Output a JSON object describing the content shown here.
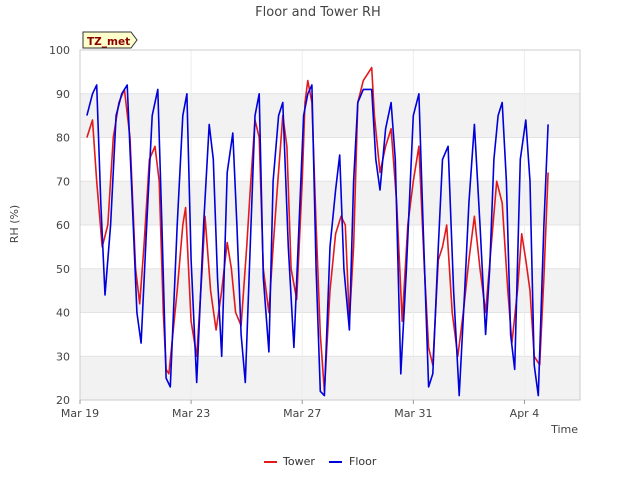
{
  "chart_data": {
    "type": "line",
    "title": "Floor and Tower RH",
    "xlabel": "Time",
    "ylabel": "RH (%)",
    "badge": "TZ_met",
    "ylim": [
      20,
      100
    ],
    "y_ticks": [
      20,
      30,
      40,
      50,
      60,
      70,
      80,
      90,
      100
    ],
    "x_range_days": [
      0,
      18
    ],
    "x_ticks": [
      {
        "day": 0,
        "label": "Mar 19"
      },
      {
        "day": 4,
        "label": "Mar 23"
      },
      {
        "day": 8,
        "label": "Mar 27"
      },
      {
        "day": 12,
        "label": "Mar 31"
      },
      {
        "day": 16,
        "label": "Apr 4"
      }
    ],
    "legend": [
      "Tower",
      "Floor"
    ],
    "legend_position": "bottom-center",
    "colors": {
      "Tower": "#e31a1c",
      "Floor": "#0000dd",
      "badge_bg": "#ffffcc",
      "badge_text": "#8b0000",
      "band": "#f2f2f2"
    },
    "series": [
      {
        "name": "Tower",
        "points": [
          [
            0.25,
            80
          ],
          [
            0.45,
            84
          ],
          [
            0.6,
            70
          ],
          [
            0.8,
            55
          ],
          [
            1.0,
            60
          ],
          [
            1.2,
            80
          ],
          [
            1.4,
            88
          ],
          [
            1.6,
            91
          ],
          [
            1.8,
            80
          ],
          [
            2.0,
            50
          ],
          [
            2.15,
            42
          ],
          [
            2.3,
            55
          ],
          [
            2.5,
            75
          ],
          [
            2.7,
            78
          ],
          [
            2.85,
            70
          ],
          [
            3.0,
            40
          ],
          [
            3.1,
            27
          ],
          [
            3.2,
            26
          ],
          [
            3.5,
            45
          ],
          [
            3.7,
            60
          ],
          [
            3.8,
            64
          ],
          [
            4.0,
            38
          ],
          [
            4.2,
            30
          ],
          [
            4.4,
            50
          ],
          [
            4.5,
            62
          ],
          [
            4.7,
            45
          ],
          [
            4.9,
            36
          ],
          [
            5.1,
            45
          ],
          [
            5.3,
            56
          ],
          [
            5.45,
            50
          ],
          [
            5.6,
            40
          ],
          [
            5.8,
            37
          ],
          [
            6.0,
            55
          ],
          [
            6.15,
            70
          ],
          [
            6.3,
            84
          ],
          [
            6.45,
            80
          ],
          [
            6.6,
            50
          ],
          [
            6.8,
            40
          ],
          [
            6.95,
            55
          ],
          [
            7.1,
            68
          ],
          [
            7.3,
            85
          ],
          [
            7.45,
            78
          ],
          [
            7.6,
            50
          ],
          [
            7.8,
            43
          ],
          [
            8.0,
            70
          ],
          [
            8.1,
            88
          ],
          [
            8.2,
            93
          ],
          [
            8.35,
            88
          ],
          [
            8.5,
            60
          ],
          [
            8.65,
            35
          ],
          [
            8.8,
            22
          ],
          [
            9.0,
            45
          ],
          [
            9.2,
            58
          ],
          [
            9.4,
            62
          ],
          [
            9.55,
            60
          ],
          [
            9.7,
            38
          ],
          [
            9.85,
            55
          ],
          [
            10.0,
            88
          ],
          [
            10.2,
            93
          ],
          [
            10.4,
            95
          ],
          [
            10.5,
            96
          ],
          [
            10.6,
            85
          ],
          [
            10.8,
            72
          ],
          [
            11.0,
            78
          ],
          [
            11.2,
            82
          ],
          [
            11.4,
            65
          ],
          [
            11.6,
            38
          ],
          [
            11.8,
            60
          ],
          [
            12.0,
            70
          ],
          [
            12.2,
            78
          ],
          [
            12.4,
            50
          ],
          [
            12.55,
            32
          ],
          [
            12.7,
            28
          ],
          [
            12.9,
            52
          ],
          [
            13.05,
            55
          ],
          [
            13.2,
            60
          ],
          [
            13.4,
            40
          ],
          [
            13.6,
            30
          ],
          [
            13.8,
            40
          ],
          [
            14.0,
            52
          ],
          [
            14.2,
            62
          ],
          [
            14.4,
            50
          ],
          [
            14.6,
            40
          ],
          [
            14.8,
            55
          ],
          [
            15.0,
            70
          ],
          [
            15.2,
            65
          ],
          [
            15.4,
            45
          ],
          [
            15.55,
            33
          ],
          [
            15.75,
            45
          ],
          [
            15.9,
            58
          ],
          [
            16.05,
            52
          ],
          [
            16.2,
            45
          ],
          [
            16.35,
            30
          ],
          [
            16.55,
            28
          ],
          [
            16.7,
            48
          ],
          [
            16.85,
            72
          ]
        ]
      },
      {
        "name": "Floor",
        "points": [
          [
            0.25,
            85
          ],
          [
            0.45,
            90
          ],
          [
            0.6,
            92
          ],
          [
            0.75,
            65
          ],
          [
            0.9,
            44
          ],
          [
            1.1,
            60
          ],
          [
            1.3,
            85
          ],
          [
            1.5,
            90
          ],
          [
            1.7,
            92
          ],
          [
            1.85,
            70
          ],
          [
            2.05,
            40
          ],
          [
            2.2,
            33
          ],
          [
            2.4,
            60
          ],
          [
            2.6,
            85
          ],
          [
            2.8,
            91
          ],
          [
            2.95,
            60
          ],
          [
            3.1,
            25
          ],
          [
            3.25,
            23
          ],
          [
            3.5,
            60
          ],
          [
            3.7,
            85
          ],
          [
            3.85,
            90
          ],
          [
            4.0,
            52
          ],
          [
            4.2,
            24
          ],
          [
            4.45,
            60
          ],
          [
            4.65,
            83
          ],
          [
            4.8,
            75
          ],
          [
            4.95,
            48
          ],
          [
            5.1,
            30
          ],
          [
            5.3,
            72
          ],
          [
            5.5,
            81
          ],
          [
            5.65,
            60
          ],
          [
            5.8,
            35
          ],
          [
            5.95,
            24
          ],
          [
            6.1,
            50
          ],
          [
            6.3,
            85
          ],
          [
            6.45,
            90
          ],
          [
            6.6,
            48
          ],
          [
            6.8,
            31
          ],
          [
            6.95,
            70
          ],
          [
            7.15,
            85
          ],
          [
            7.3,
            88
          ],
          [
            7.5,
            55
          ],
          [
            7.7,
            32
          ],
          [
            7.85,
            55
          ],
          [
            8.05,
            85
          ],
          [
            8.2,
            90
          ],
          [
            8.35,
            92
          ],
          [
            8.5,
            50
          ],
          [
            8.65,
            22
          ],
          [
            8.8,
            21
          ],
          [
            9.0,
            55
          ],
          [
            9.2,
            68
          ],
          [
            9.35,
            76
          ],
          [
            9.5,
            50
          ],
          [
            9.7,
            36
          ],
          [
            9.85,
            70
          ],
          [
            10.0,
            88
          ],
          [
            10.2,
            91
          ],
          [
            10.5,
            91
          ],
          [
            10.65,
            75
          ],
          [
            10.8,
            68
          ],
          [
            11.0,
            82
          ],
          [
            11.2,
            88
          ],
          [
            11.35,
            75
          ],
          [
            11.55,
            26
          ],
          [
            11.75,
            50
          ],
          [
            12.0,
            85
          ],
          [
            12.2,
            90
          ],
          [
            12.35,
            60
          ],
          [
            12.55,
            23
          ],
          [
            12.7,
            26
          ],
          [
            12.9,
            55
          ],
          [
            13.05,
            75
          ],
          [
            13.25,
            78
          ],
          [
            13.45,
            45
          ],
          [
            13.65,
            21
          ],
          [
            13.85,
            45
          ],
          [
            14.0,
            65
          ],
          [
            14.2,
            83
          ],
          [
            14.4,
            60
          ],
          [
            14.6,
            35
          ],
          [
            14.75,
            50
          ],
          [
            14.9,
            75
          ],
          [
            15.05,
            85
          ],
          [
            15.2,
            88
          ],
          [
            15.35,
            70
          ],
          [
            15.5,
            35
          ],
          [
            15.65,
            27
          ],
          [
            15.85,
            75
          ],
          [
            16.05,
            84
          ],
          [
            16.2,
            70
          ],
          [
            16.35,
            28
          ],
          [
            16.5,
            21
          ],
          [
            16.7,
            60
          ],
          [
            16.85,
            83
          ]
        ]
      }
    ]
  }
}
